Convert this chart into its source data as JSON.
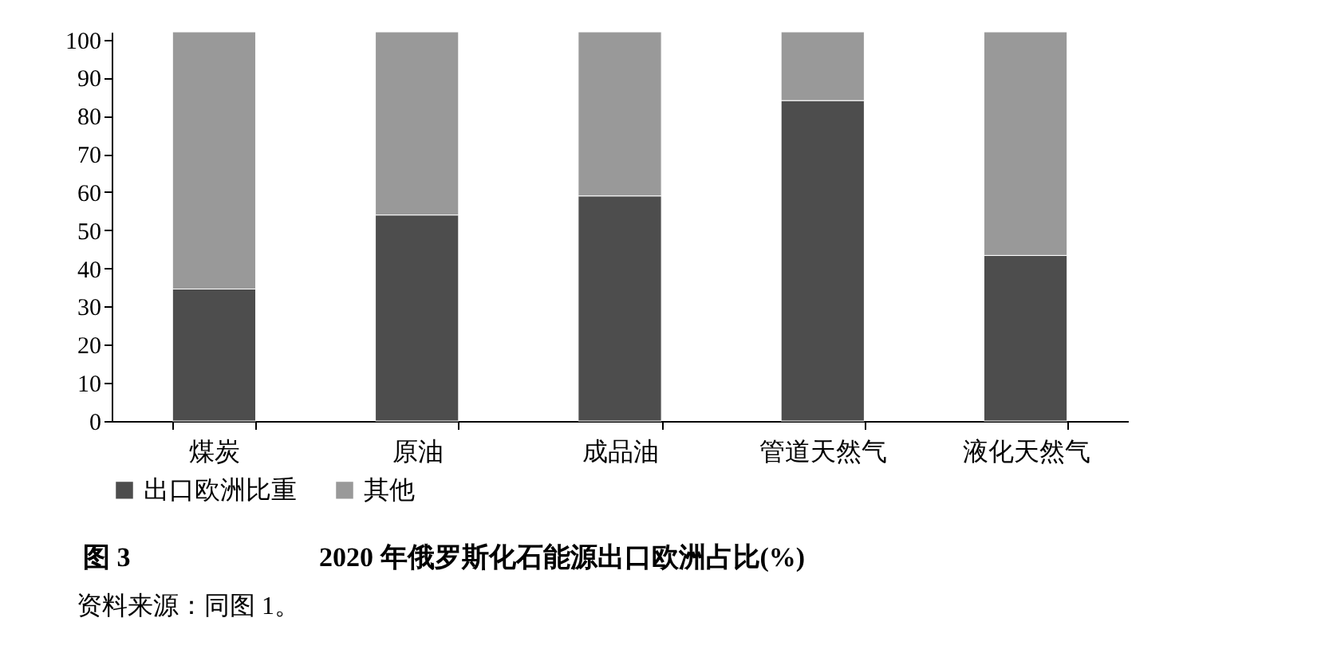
{
  "chart_data": {
    "type": "bar",
    "stacked": true,
    "title": "2020 年俄罗斯化石能源出口欧洲占比(%)",
    "categories": [
      "煤炭",
      "原油",
      "成品油",
      "管道天然气",
      "液化天然气"
    ],
    "series": [
      {
        "name": "出口欧洲比重",
        "color": "#4d4d4d",
        "values": [
          34.6,
          54,
          59,
          84,
          43.4
        ]
      },
      {
        "name": "其他",
        "color": "#999999",
        "values": [
          67.4,
          48,
          43,
          18,
          58.6
        ]
      }
    ],
    "ylim": [
      0,
      102
    ],
    "yticks": [
      0,
      10,
      20,
      30,
      40,
      50,
      60,
      70,
      80,
      90,
      100
    ],
    "grid": false,
    "legend": "bottom",
    "annotations": [
      "图 3",
      "资料来源：同图 1。"
    ]
  }
}
